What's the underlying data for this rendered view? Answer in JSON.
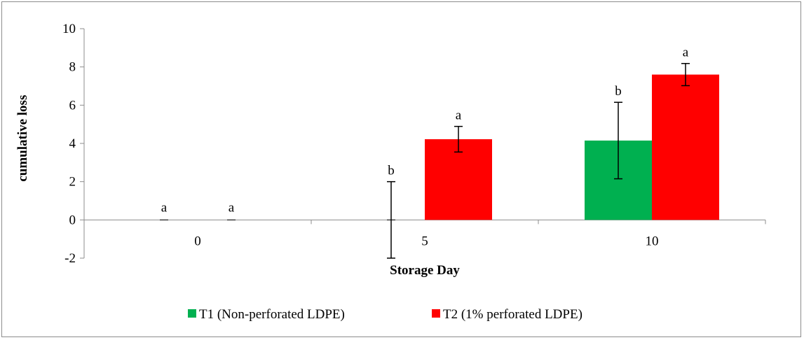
{
  "chart_data": {
    "type": "bar",
    "title": "",
    "xlabel": "Storage Day",
    "ylabel": "cumulative loss",
    "categories": [
      "0",
      "5",
      "10"
    ],
    "ylim": [
      -2,
      10
    ],
    "yticks": [
      -2,
      0,
      2,
      4,
      6,
      8,
      10
    ],
    "grid": false,
    "legend_position": "bottom",
    "series": [
      {
        "name": "T1 (Non-perforated LDPE)",
        "color": "#00b050",
        "values": [
          0,
          0,
          4.15
        ],
        "errors": [
          0,
          2.0,
          2.0
        ],
        "labels": [
          "a",
          "b",
          "b"
        ]
      },
      {
        "name": "T2 (1% perforated LDPE)",
        "color": "#ff0000",
        "values": [
          0,
          4.22,
          7.6
        ],
        "errors": [
          0,
          0.67,
          0.58
        ],
        "labels": [
          "a",
          "a",
          "a"
        ]
      }
    ]
  }
}
